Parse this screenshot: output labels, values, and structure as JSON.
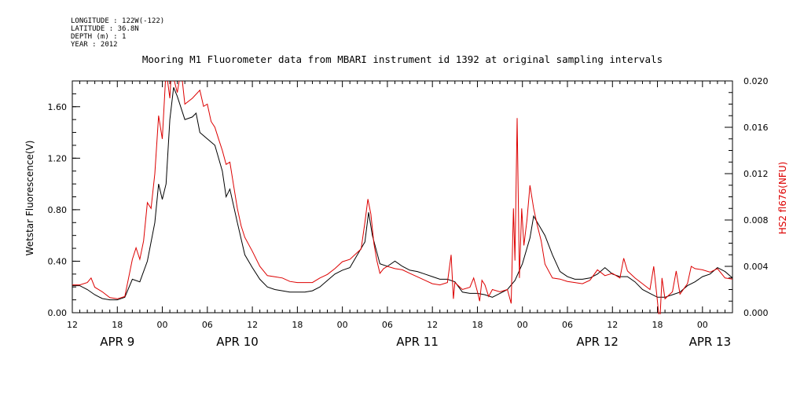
{
  "header": {
    "longitude": "LONGITUDE : 122W(-122)",
    "latitude": "LATITUDE : 36.8N",
    "depth": "DEPTH (m) : 1",
    "year": "YEAR : 2012"
  },
  "chart_data": {
    "type": "line",
    "title": "Mooring M1 Fluorometer data from MBARI instrument id 1392 at original sampling intervals",
    "xlabel": "",
    "ylabel_left": "Wetstar Fluorescence(V)",
    "ylabel_right": "HS2 fl676(NFU)",
    "xlim": [
      0,
      88
    ],
    "ylim_left": [
      0,
      1.8
    ],
    "ylim_right": [
      0,
      0.02
    ],
    "grid": false,
    "x_units": "hours since APR 9 12:00",
    "x_ticks": [
      {
        "x": 0,
        "label": "12"
      },
      {
        "x": 6,
        "label": "18"
      },
      {
        "x": 12,
        "label": "00"
      },
      {
        "x": 18,
        "label": "06"
      },
      {
        "x": 24,
        "label": "12"
      },
      {
        "x": 30,
        "label": "18"
      },
      {
        "x": 36,
        "label": "00"
      },
      {
        "x": 42,
        "label": "06"
      },
      {
        "x": 48,
        "label": "12"
      },
      {
        "x": 54,
        "label": "18"
      },
      {
        "x": 60,
        "label": "00"
      },
      {
        "x": 66,
        "label": "06"
      },
      {
        "x": 72,
        "label": "12"
      },
      {
        "x": 78,
        "label": "18"
      },
      {
        "x": 84,
        "label": "00"
      }
    ],
    "date_labels": [
      {
        "x": 6,
        "label": "APR  9"
      },
      {
        "x": 22,
        "label": "APR 10"
      },
      {
        "x": 46,
        "label": "APR 11"
      },
      {
        "x": 70,
        "label": "APR 12"
      },
      {
        "x": 85,
        "label": "APR 13"
      }
    ],
    "left_ticks": [
      0.0,
      0.4,
      0.8,
      1.2,
      1.6
    ],
    "left_tick_labels": [
      "0.00",
      "0.40",
      "0.80",
      "1.20",
      "1.60"
    ],
    "right_ticks": [
      0.0,
      0.004,
      0.008,
      0.012,
      0.016,
      0.02
    ],
    "right_tick_labels": [
      "0.000",
      "0.004",
      "0.008",
      "0.012",
      "0.016",
      "0.020"
    ],
    "series": [
      {
        "name": "Wetstar Fluorescence(V)",
        "axis": "left",
        "color": "#000000",
        "points": [
          [
            0,
            0.21
          ],
          [
            1,
            0.21
          ],
          [
            2,
            0.18
          ],
          [
            3,
            0.14
          ],
          [
            4,
            0.11
          ],
          [
            5,
            0.1
          ],
          [
            6,
            0.1
          ],
          [
            7,
            0.12
          ],
          [
            8,
            0.26
          ],
          [
            9,
            0.24
          ],
          [
            10,
            0.4
          ],
          [
            11,
            0.7
          ],
          [
            11.5,
            1.0
          ],
          [
            12,
            0.88
          ],
          [
            12.5,
            1.0
          ],
          [
            13,
            1.5
          ],
          [
            13.5,
            1.75
          ],
          [
            14,
            1.68
          ],
          [
            15,
            1.5
          ],
          [
            16,
            1.52
          ],
          [
            16.5,
            1.55
          ],
          [
            17,
            1.4
          ],
          [
            18,
            1.35
          ],
          [
            19,
            1.3
          ],
          [
            20,
            1.1
          ],
          [
            20.5,
            0.9
          ],
          [
            21,
            0.96
          ],
          [
            22,
            0.7
          ],
          [
            23,
            0.45
          ],
          [
            24,
            0.35
          ],
          [
            25,
            0.26
          ],
          [
            26,
            0.2
          ],
          [
            27,
            0.18
          ],
          [
            28,
            0.17
          ],
          [
            29,
            0.16
          ],
          [
            30,
            0.16
          ],
          [
            31,
            0.16
          ],
          [
            32,
            0.17
          ],
          [
            33,
            0.2
          ],
          [
            34,
            0.25
          ],
          [
            35,
            0.3
          ],
          [
            36,
            0.33
          ],
          [
            37,
            0.35
          ],
          [
            38,
            0.45
          ],
          [
            38.5,
            0.5
          ],
          [
            39,
            0.55
          ],
          [
            39.5,
            0.78
          ],
          [
            40,
            0.6
          ],
          [
            41,
            0.38
          ],
          [
            42,
            0.36
          ],
          [
            43,
            0.4
          ],
          [
            44,
            0.36
          ],
          [
            45,
            0.33
          ],
          [
            46,
            0.32
          ],
          [
            47,
            0.3
          ],
          [
            48,
            0.28
          ],
          [
            49,
            0.26
          ],
          [
            50,
            0.26
          ],
          [
            51,
            0.24
          ],
          [
            52,
            0.16
          ],
          [
            53,
            0.15
          ],
          [
            54,
            0.15
          ],
          [
            55,
            0.14
          ],
          [
            56,
            0.12
          ],
          [
            57,
            0.15
          ],
          [
            58,
            0.18
          ],
          [
            59,
            0.25
          ],
          [
            60,
            0.38
          ],
          [
            61,
            0.58
          ],
          [
            61.5,
            0.75
          ],
          [
            62,
            0.7
          ],
          [
            63,
            0.6
          ],
          [
            64,
            0.45
          ],
          [
            65,
            0.32
          ],
          [
            66,
            0.28
          ],
          [
            67,
            0.26
          ],
          [
            68,
            0.26
          ],
          [
            69,
            0.27
          ],
          [
            70,
            0.3
          ],
          [
            71,
            0.35
          ],
          [
            72,
            0.3
          ],
          [
            73,
            0.28
          ],
          [
            74,
            0.28
          ],
          [
            75,
            0.24
          ],
          [
            76,
            0.18
          ],
          [
            77,
            0.15
          ],
          [
            78,
            0.12
          ],
          [
            79,
            0.12
          ],
          [
            80,
            0.14
          ],
          [
            81,
            0.16
          ],
          [
            82,
            0.21
          ],
          [
            83,
            0.24
          ],
          [
            84,
            0.28
          ],
          [
            85,
            0.3
          ],
          [
            86,
            0.35
          ],
          [
            87,
            0.32
          ],
          [
            88,
            0.27
          ]
        ]
      },
      {
        "name": "HS2 fl676(NFU)",
        "axis": "right",
        "color": "#dd0000",
        "points": [
          [
            0,
            0.0024
          ],
          [
            1,
            0.0024
          ],
          [
            2,
            0.0026
          ],
          [
            2.5,
            0.003
          ],
          [
            3,
            0.0022
          ],
          [
            4,
            0.0018
          ],
          [
            5,
            0.0013
          ],
          [
            6,
            0.0012
          ],
          [
            7,
            0.0014
          ],
          [
            7.5,
            0.003
          ],
          [
            8,
            0.0046
          ],
          [
            8.5,
            0.0056
          ],
          [
            9,
            0.0046
          ],
          [
            9.5,
            0.0062
          ],
          [
            10,
            0.0095
          ],
          [
            10.5,
            0.009
          ],
          [
            11,
            0.012
          ],
          [
            11.5,
            0.017
          ],
          [
            12,
            0.015
          ],
          [
            12.5,
            0.021
          ],
          [
            13,
            0.0185
          ],
          [
            13.3,
            0.022
          ],
          [
            13.6,
            0.02
          ],
          [
            14,
            0.019
          ],
          [
            14.5,
            0.021
          ],
          [
            15,
            0.018
          ],
          [
            16,
            0.0185
          ],
          [
            17,
            0.0192
          ],
          [
            17.5,
            0.0178
          ],
          [
            18,
            0.018
          ],
          [
            18.5,
            0.0165
          ],
          [
            19,
            0.016
          ],
          [
            19.5,
            0.015
          ],
          [
            20,
            0.014
          ],
          [
            20.5,
            0.0128
          ],
          [
            21,
            0.013
          ],
          [
            21.5,
            0.011
          ],
          [
            22,
            0.009
          ],
          [
            22.5,
            0.0075
          ],
          [
            23,
            0.0065
          ],
          [
            24,
            0.0053
          ],
          [
            25,
            0.004
          ],
          [
            26,
            0.0032
          ],
          [
            27,
            0.0031
          ],
          [
            28,
            0.003
          ],
          [
            29,
            0.0027
          ],
          [
            30,
            0.0026
          ],
          [
            31,
            0.0026
          ],
          [
            32,
            0.0026
          ],
          [
            33,
            0.003
          ],
          [
            34,
            0.0033
          ],
          [
            35,
            0.0038
          ],
          [
            36,
            0.0044
          ],
          [
            37,
            0.0046
          ],
          [
            38,
            0.0052
          ],
          [
            38.5,
            0.0055
          ],
          [
            39,
            0.0078
          ],
          [
            39.4,
            0.0098
          ],
          [
            39.8,
            0.0085
          ],
          [
            40.2,
            0.006
          ],
          [
            40.6,
            0.0045
          ],
          [
            41,
            0.0034
          ],
          [
            41.5,
            0.0038
          ],
          [
            42,
            0.004
          ],
          [
            43,
            0.0038
          ],
          [
            44,
            0.0037
          ],
          [
            45,
            0.0034
          ],
          [
            46,
            0.0031
          ],
          [
            47,
            0.0028
          ],
          [
            48,
            0.0025
          ],
          [
            49,
            0.0024
          ],
          [
            50,
            0.0026
          ],
          [
            50.5,
            0.005
          ],
          [
            50.8,
            0.0012
          ],
          [
            51,
            0.0026
          ],
          [
            52,
            0.002
          ],
          [
            53,
            0.0022
          ],
          [
            53.5,
            0.003
          ],
          [
            54,
            0.0018
          ],
          [
            54.3,
            0.001
          ],
          [
            54.6,
            0.0028
          ],
          [
            55,
            0.0024
          ],
          [
            55.5,
            0.0014
          ],
          [
            56,
            0.002
          ],
          [
            57,
            0.0018
          ],
          [
            58,
            0.002
          ],
          [
            58.5,
            0.0008
          ],
          [
            58.8,
            0.009
          ],
          [
            59,
            0.0045
          ],
          [
            59.3,
            0.0168
          ],
          [
            59.6,
            0.003
          ],
          [
            59.9,
            0.009
          ],
          [
            60.2,
            0.0058
          ],
          [
            60.6,
            0.008
          ],
          [
            61,
            0.011
          ],
          [
            61.5,
            0.009
          ],
          [
            62,
            0.0075
          ],
          [
            62.5,
            0.0062
          ],
          [
            63,
            0.0042
          ],
          [
            64,
            0.003
          ],
          [
            65,
            0.0029
          ],
          [
            66,
            0.0027
          ],
          [
            67,
            0.0026
          ],
          [
            68,
            0.0025
          ],
          [
            69,
            0.0028
          ],
          [
            70,
            0.0037
          ],
          [
            71,
            0.0032
          ],
          [
            72,
            0.0034
          ],
          [
            73,
            0.003
          ],
          [
            73.5,
            0.0047
          ],
          [
            74,
            0.0036
          ],
          [
            75,
            0.003
          ],
          [
            76,
            0.0025
          ],
          [
            77,
            0.002
          ],
          [
            77.5,
            0.004
          ],
          [
            78,
            0.001
          ],
          [
            78.3,
            -0.001
          ],
          [
            78.6,
            0.003
          ],
          [
            79,
            0.0012
          ],
          [
            80,
            0.0018
          ],
          [
            80.5,
            0.0036
          ],
          [
            81,
            0.0016
          ],
          [
            82,
            0.0025
          ],
          [
            82.5,
            0.004
          ],
          [
            83,
            0.0038
          ],
          [
            84,
            0.0037
          ],
          [
            85,
            0.0035
          ],
          [
            86,
            0.0038
          ],
          [
            87,
            0.003
          ],
          [
            88,
            0.0029
          ]
        ]
      }
    ]
  }
}
